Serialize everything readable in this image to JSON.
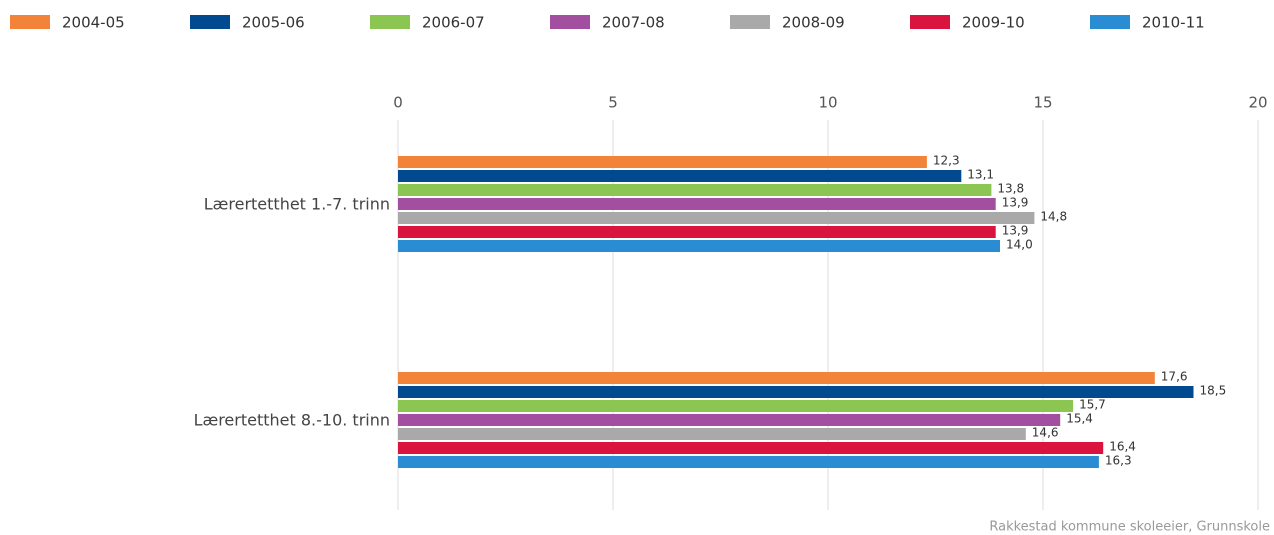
{
  "chart_data": {
    "type": "hbar",
    "categories": [
      "Lærertetthet 1.-7. trinn",
      "Lærertetthet 8.-10. trinn"
    ],
    "series": [
      {
        "name": "2004-05",
        "color": "#f4833a",
        "values": [
          12.3,
          17.6
        ],
        "value_labels": [
          "12,3",
          "17,6"
        ]
      },
      {
        "name": "2005-06",
        "color": "#014a8f",
        "values": [
          13.1,
          18.5
        ],
        "value_labels": [
          "13,1",
          "18,5"
        ]
      },
      {
        "name": "2006-07",
        "color": "#8bc653",
        "values": [
          13.8,
          15.7
        ],
        "value_labels": [
          "13,8",
          "15,7"
        ]
      },
      {
        "name": "2007-08",
        "color": "#a24fa0",
        "values": [
          13.9,
          15.4
        ],
        "value_labels": [
          "13,9",
          "15,4"
        ]
      },
      {
        "name": "2008-09",
        "color": "#a9a9a9",
        "values": [
          14.8,
          14.6
        ],
        "value_labels": [
          "14,8",
          "14,6"
        ]
      },
      {
        "name": "2009-10",
        "color": "#d9143f",
        "values": [
          13.9,
          16.4
        ],
        "value_labels": [
          "13,9",
          "16,4"
        ]
      },
      {
        "name": "2010-11",
        "color": "#2a8dd4",
        "values": [
          14.0,
          16.3
        ],
        "value_labels": [
          "14,0",
          "16,3"
        ]
      }
    ],
    "xlim": [
      0,
      20
    ],
    "xticks": [
      0,
      5,
      10,
      15,
      20
    ],
    "grid": true,
    "source": "Rakkestad kommune skoleeier, Grunnskole"
  }
}
